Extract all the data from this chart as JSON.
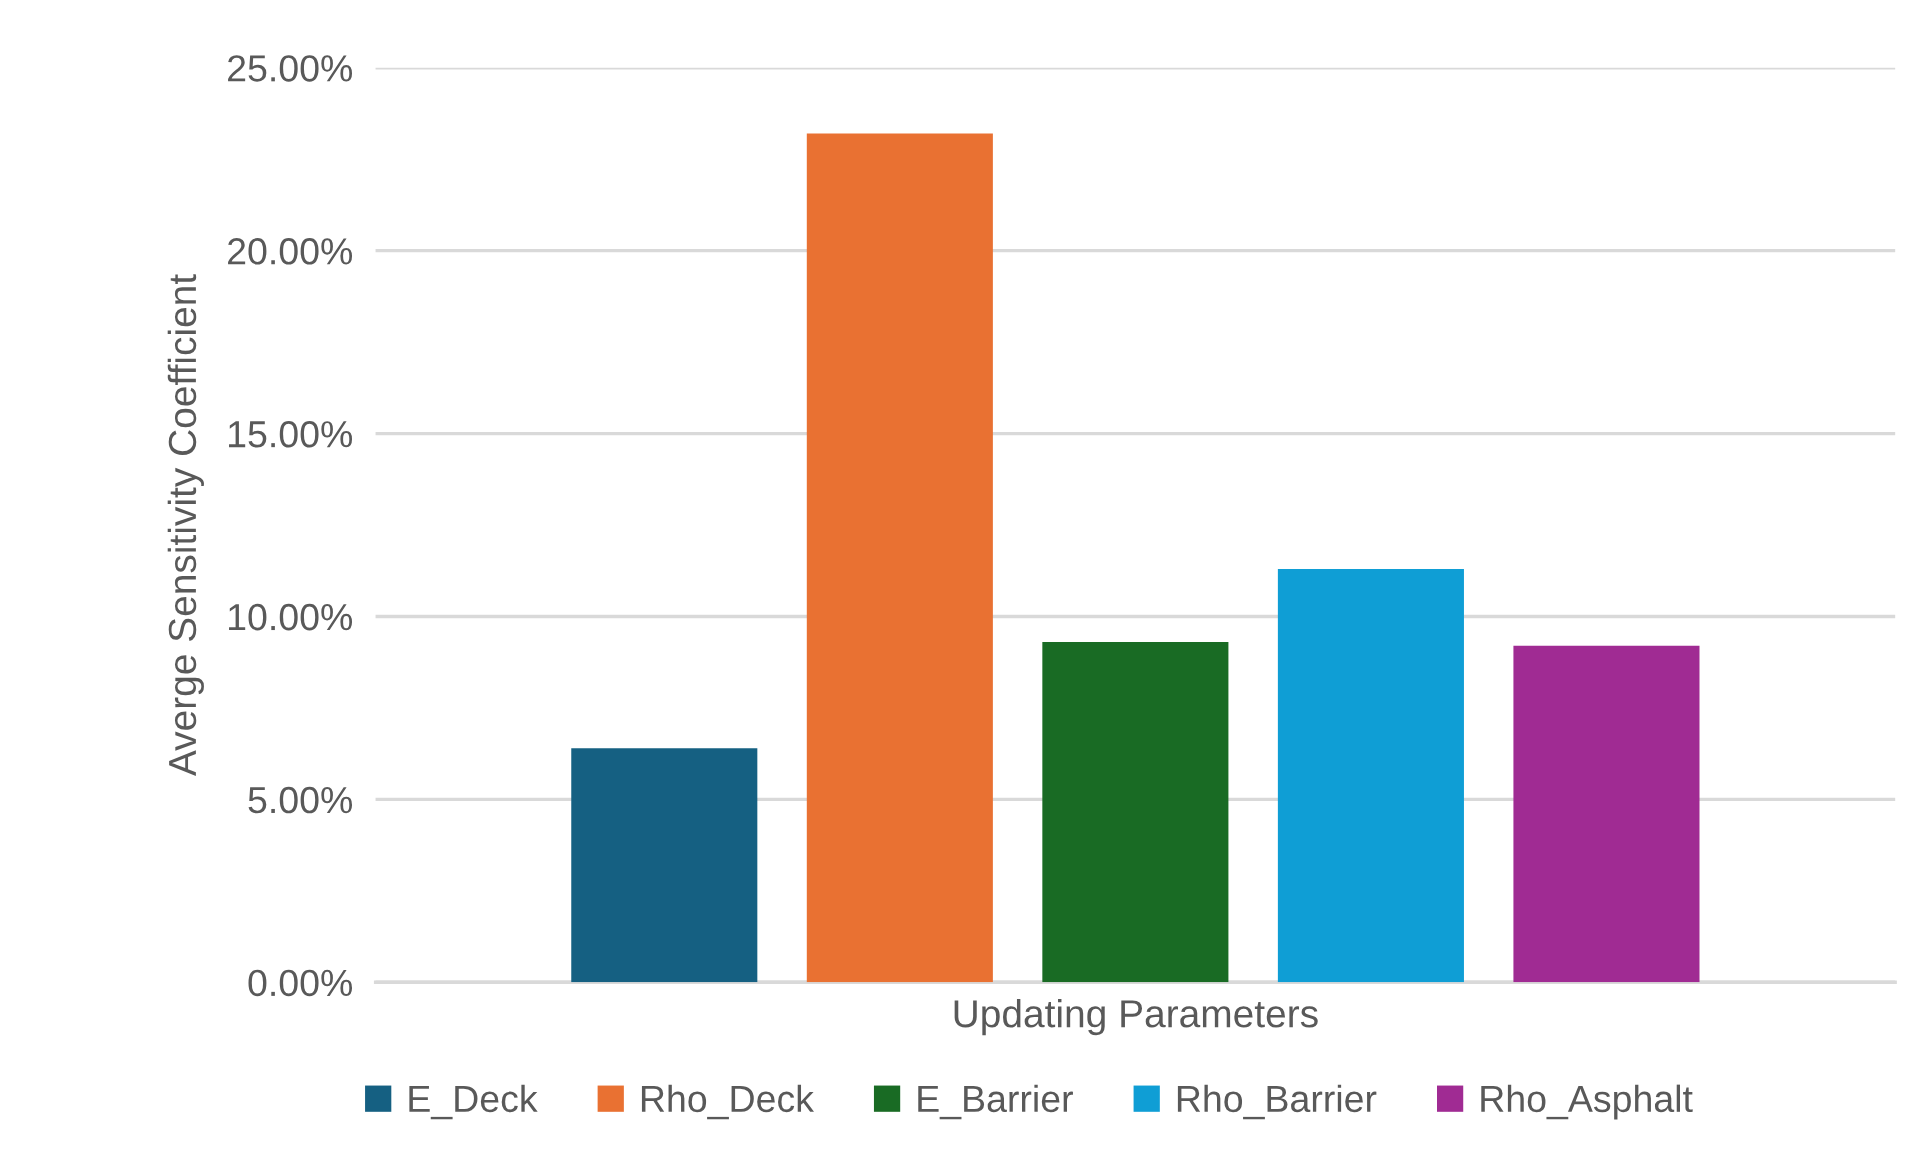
{
  "chart_data": {
    "type": "bar",
    "categories": [
      "Updating Parameters"
    ],
    "ylabel": "Averge Sensitivity Coefficient",
    "series": [
      {
        "name": "E_Deck",
        "color": "#156082",
        "values": [
          6.4
        ]
      },
      {
        "name": "Rho_Deck",
        "color": "#e97132",
        "values": [
          23.2
        ]
      },
      {
        "name": "E_Barrier",
        "color": "#196b24",
        "values": [
          9.3
        ]
      },
      {
        "name": "Rho_Barrier",
        "color": "#0f9ed5",
        "values": [
          11.3
        ]
      },
      {
        "name": "Rho_Asphalt",
        "color": "#a02b93",
        "values": [
          9.2
        ]
      }
    ],
    "ylim": [
      0,
      25
    ],
    "yticks": [
      {
        "value": 0,
        "label": "0.00%"
      },
      {
        "value": 5,
        "label": "5.00%"
      },
      {
        "value": 10,
        "label": "10.00%"
      },
      {
        "value": 15,
        "label": "15.00%"
      },
      {
        "value": 20,
        "label": "20.00%"
      },
      {
        "value": 25,
        "label": "25.00%"
      }
    ],
    "grid": "y",
    "legend": "bottom"
  }
}
